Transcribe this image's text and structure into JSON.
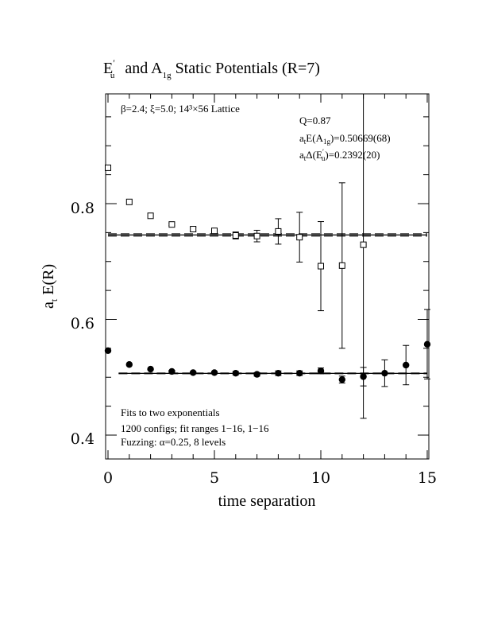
{
  "chart_data": {
    "type": "scatter",
    "title": {
      "part1": "E",
      "part1_sup": "′",
      "part1_sub": "u",
      "part2": " and A",
      "part2_sub": "1g",
      "part3": " Static Potentials (R=7)"
    },
    "xlabel": "time separation",
    "ylabel": {
      "main": "a",
      "sub": "t",
      "rest": " E(R)"
    },
    "xlim": [
      0,
      15
    ],
    "ylim": [
      0.36,
      0.99
    ],
    "x_ticks": [
      0,
      5,
      10,
      15
    ],
    "y_ticks": [
      0.4,
      0.6,
      0.8
    ],
    "top_left_note": "β=2.4; ξ=5.0; 14³×56 Lattice",
    "fit_info": {
      "q": "Q=0.87",
      "e_a1g": {
        "pre": "a",
        "pre_sub": "t",
        "mid": "E(A",
        "mid_sub": "1g",
        "post": ")=0.50669(68)"
      },
      "de_eu": {
        "pre": "a",
        "pre_sub": "t",
        "mid": "Δ(E",
        "mid_sup": "′",
        "mid_sub": "u",
        "post": ")=0.2392(20)"
      }
    },
    "bottom_notes": [
      "Fits to two exponentials",
      "1200 configs; fit ranges 1−16, 1−16",
      "Fuzzing: α=0.25, 8 levels"
    ],
    "series": [
      {
        "marker": "open-square",
        "x": [
          0,
          1,
          2,
          3,
          4,
          5,
          6,
          7,
          8,
          9,
          10,
          11,
          12
        ],
        "y": [
          0.862,
          0.803,
          0.779,
          0.764,
          0.756,
          0.753,
          0.745,
          0.744,
          0.752,
          0.742,
          0.692,
          0.693,
          0.729
        ],
        "err": [
          0,
          0,
          0,
          0.002,
          0.003,
          0.004,
          0.006,
          0.01,
          0.022,
          0.043,
          0.077,
          0.143,
          0.3
        ]
      },
      {
        "marker": "filled-circle",
        "x": [
          0,
          1,
          2,
          3,
          4,
          5,
          6,
          7,
          8,
          9,
          10,
          11,
          12,
          13,
          14,
          15
        ],
        "y": [
          0.546,
          0.522,
          0.514,
          0.51,
          0.508,
          0.508,
          0.507,
          0.505,
          0.507,
          0.507,
          0.511,
          0.496,
          0.501,
          0.507,
          0.521,
          0.557
        ],
        "err": [
          0,
          0,
          0,
          0.002,
          0.002,
          0.002,
          0.003,
          0.003,
          0.004,
          0.004,
          0.005,
          0.006,
          0.016,
          0.023,
          0.034,
          0.06
        ]
      }
    ],
    "fit_lines": [
      {
        "x_range": [
          0,
          15
        ],
        "central": 0.7459,
        "band": [
          0.7439,
          0.7479
        ]
      },
      {
        "x_range": [
          0.5,
          15
        ],
        "central": 0.50669,
        "band": [
          0.50601,
          0.50737
        ]
      }
    ]
  }
}
